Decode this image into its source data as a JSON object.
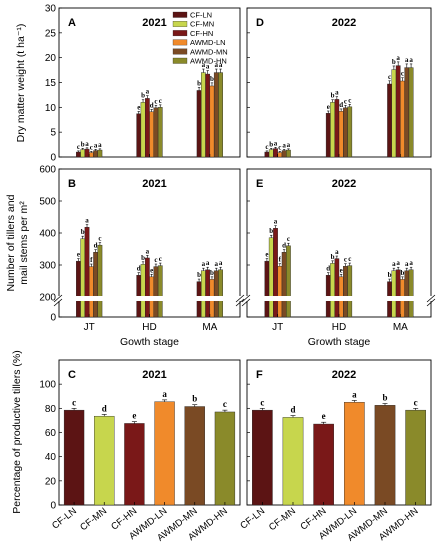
{
  "figure": {
    "treatments": [
      "CF-LN",
      "CF-MN",
      "CF-HN",
      "AWMD-LN",
      "AWMD-MN",
      "AWMD-HN"
    ],
    "colors": [
      "#5c1414",
      "#c7d64d",
      "#7a1818",
      "#f08a2b",
      "#7a4a24",
      "#8a8a2a"
    ],
    "legend_position": "top-right of panel A"
  },
  "chart_data": [
    {
      "panel": "A",
      "year": "2021",
      "type": "bar",
      "categories": [
        "JT",
        "HD",
        "MA"
      ],
      "ylabel": "Dry matter weight (t ha⁻¹)",
      "ylim": [
        0,
        30
      ],
      "yticks": [
        0,
        5,
        10,
        15,
        20,
        25,
        30
      ],
      "series": [
        {
          "name": "CF-LN",
          "values": [
            1.0,
            8.7,
            13.4
          ],
          "letters": [
            "c",
            "e",
            "b"
          ]
        },
        {
          "name": "CF-MN",
          "values": [
            1.5,
            11.0,
            17.0
          ],
          "letters": [
            "b",
            "b",
            "a"
          ]
        },
        {
          "name": "CF-HN",
          "values": [
            1.6,
            11.8,
            16.7
          ],
          "letters": [
            "a",
            "a",
            "a"
          ]
        },
        {
          "name": "AWMD-LN",
          "values": [
            0.9,
            9.1,
            14.3
          ],
          "letters": [
            "c",
            "d",
            "b"
          ]
        },
        {
          "name": "AWMD-MN",
          "values": [
            1.3,
            9.9,
            17.0
          ],
          "letters": [
            "a",
            "c",
            "a"
          ]
        },
        {
          "name": "AWMD-HN",
          "values": [
            1.4,
            10.0,
            17.0
          ],
          "letters": [
            "a",
            "c",
            "a"
          ]
        }
      ]
    },
    {
      "panel": "D",
      "year": "2022",
      "type": "bar",
      "categories": [
        "JT",
        "HD",
        "MA"
      ],
      "ylim": [
        0,
        30
      ],
      "yticks": [
        0,
        5,
        10,
        15,
        20,
        25,
        30
      ],
      "series": [
        {
          "name": "CF-LN",
          "values": [
            1.0,
            8.8,
            14.7
          ],
          "letters": [
            "c",
            "e",
            "c"
          ]
        },
        {
          "name": "CF-MN",
          "values": [
            1.5,
            11.0,
            17.6
          ],
          "letters": [
            "b",
            "b",
            "b"
          ]
        },
        {
          "name": "CF-HN",
          "values": [
            1.7,
            11.6,
            18.4
          ],
          "letters": [
            "a",
            "a",
            "a"
          ]
        },
        {
          "name": "AWMD-LN",
          "values": [
            0.9,
            9.2,
            15.3
          ],
          "letters": [
            "c",
            "d",
            "c"
          ]
        },
        {
          "name": "AWMD-MN",
          "values": [
            1.3,
            9.9,
            18.0
          ],
          "letters": [
            "a",
            "c",
            "a"
          ]
        },
        {
          "name": "AWMD-HN",
          "values": [
            1.4,
            10.1,
            18.0
          ],
          "letters": [
            "a",
            "c",
            "a"
          ]
        }
      ]
    },
    {
      "panel": "B",
      "year": "2021",
      "type": "bar",
      "categories": [
        "JT",
        "HD",
        "MA"
      ],
      "ylabel": "Number of tillers and mail stems per m²",
      "xlabel": "Gowth stage",
      "ylim": [
        0,
        600
      ],
      "yticks": [
        0,
        100,
        200,
        300,
        400,
        500,
        600
      ],
      "axis_break": true,
      "series": [
        {
          "name": "CF-LN",
          "values": [
            312,
            268,
            248
          ],
          "letters": [
            "e",
            "d",
            "b"
          ]
        },
        {
          "name": "CF-MN",
          "values": [
            382,
            302,
            282
          ],
          "letters": [
            "b",
            "b",
            "a"
          ]
        },
        {
          "name": "CF-HN",
          "values": [
            418,
            322,
            285
          ],
          "letters": [
            "a",
            "a",
            "a"
          ]
        },
        {
          "name": "AWMD-LN",
          "values": [
            295,
            263,
            255
          ],
          "letters": [
            "f",
            "e",
            "b"
          ]
        },
        {
          "name": "AWMD-MN",
          "values": [
            340,
            295,
            282
          ],
          "letters": [
            "d",
            "c",
            "a"
          ]
        },
        {
          "name": "AWMD-HN",
          "values": [
            362,
            298,
            285
          ],
          "letters": [
            "c",
            "c",
            "a"
          ]
        }
      ]
    },
    {
      "panel": "E",
      "year": "2022",
      "type": "bar",
      "categories": [
        "JT",
        "HD",
        "MA"
      ],
      "xlabel": "Growth stage",
      "ylim": [
        0,
        600
      ],
      "yticks": [
        0,
        100,
        200,
        300,
        400,
        500,
        600
      ],
      "axis_break": true,
      "series": [
        {
          "name": "CF-LN",
          "values": [
            312,
            268,
            248
          ],
          "letters": [
            "e",
            "d",
            "b"
          ]
        },
        {
          "name": "CF-MN",
          "values": [
            385,
            305,
            282
          ],
          "letters": [
            "b",
            "b",
            "a"
          ]
        },
        {
          "name": "CF-HN",
          "values": [
            415,
            320,
            285
          ],
          "letters": [
            "a",
            "a",
            "a"
          ]
        },
        {
          "name": "AWMD-LN",
          "values": [
            296,
            263,
            255
          ],
          "letters": [
            "f",
            "e",
            "b"
          ]
        },
        {
          "name": "AWMD-MN",
          "values": [
            340,
            296,
            282
          ],
          "letters": [
            "d",
            "c",
            "a"
          ]
        },
        {
          "name": "AWMD-HN",
          "values": [
            360,
            298,
            285
          ],
          "letters": [
            "c",
            "c",
            "a"
          ]
        }
      ]
    },
    {
      "panel": "C",
      "year": "2021",
      "type": "bar",
      "categories": [
        "CF-LN",
        "CF-MN",
        "CF-HN",
        "AWMD-LN",
        "AWMD-MN",
        "AWMD-HN"
      ],
      "ylabel": "Percentage of productive tillers (%)",
      "ylim": [
        0,
        120
      ],
      "yticks": [
        0,
        20,
        40,
        60,
        80,
        100
      ],
      "values": [
        78.5,
        73.5,
        67.5,
        85.5,
        81.5,
        77.0
      ],
      "letters": [
        "c",
        "d",
        "e",
        "a",
        "b",
        "c"
      ]
    },
    {
      "panel": "F",
      "year": "2022",
      "type": "bar",
      "categories": [
        "CF-LN",
        "CF-MN",
        "CF-HN",
        "AWMD-LN",
        "AWMD-MN",
        "AWMD-HN"
      ],
      "ylim": [
        0,
        120
      ],
      "yticks": [
        0,
        20,
        40,
        60,
        80,
        100
      ],
      "values": [
        78.5,
        72.5,
        67.0,
        85.0,
        82.5,
        78.5
      ],
      "letters": [
        "c",
        "d",
        "e",
        "a",
        "b",
        "c"
      ]
    }
  ]
}
